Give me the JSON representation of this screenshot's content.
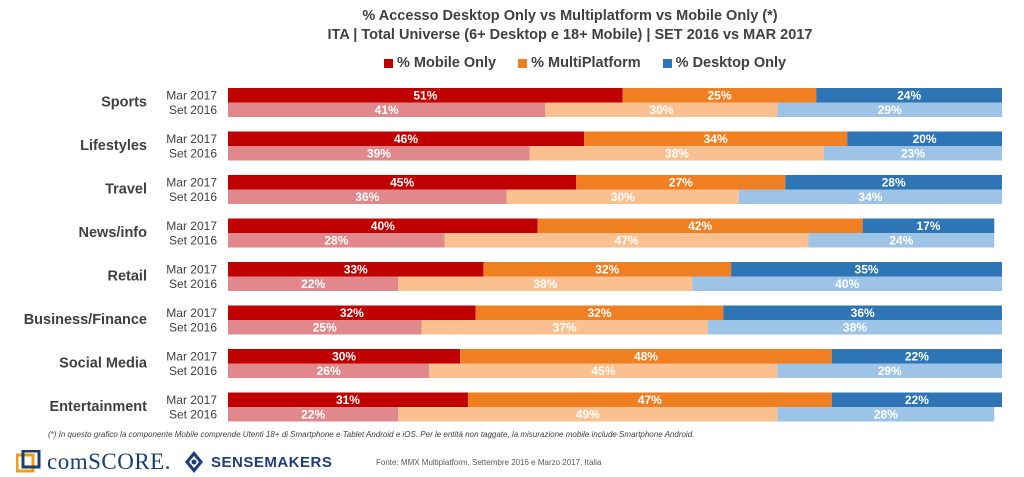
{
  "title_line1": "% Accesso Desktop Only vs Multiplatform vs Mobile Only (*)",
  "title_line2": "ITA |  Total Universe (6+ Desktop e 18+ Mobile) | SET 2016 vs MAR 2017",
  "footnote": "(*) In questo grafico la componente Mobile comprende Utenti 18+ di Smartphone e Tablet Android e iOS. Per le entità non taggate, la misurazione mobile include Smartphone Android.",
  "source": "Fonte: MMX Multiplatform, Settembre 2016 e Marzo 2017, Italia",
  "logos": {
    "comscore": "comSCORE.",
    "sensemakers": "SENSEMAKERS"
  },
  "colors": {
    "mobile_mar": "#c00000",
    "multi_mar": "#f07f22",
    "desktop_mar": "#2e75b6",
    "mobile_set": "#e0888b",
    "multi_set": "#fac090",
    "desktop_set": "#9dc3e6"
  },
  "chart_data": {
    "type": "bar",
    "orientation": "horizontal",
    "stacked": true,
    "unit": "%",
    "xlim": [
      0,
      100
    ],
    "legend_position": "top",
    "periods": [
      "Mar 2017",
      "Set 2016"
    ],
    "categories": [
      "Sports",
      "Lifestyles",
      "Travel",
      "News/info",
      "Retail",
      "Business/Finance",
      "Social Media",
      "Entertainment"
    ],
    "series": [
      {
        "name": "% Mobile Only",
        "values": {
          "Mar 2017": [
            51,
            46,
            45,
            40,
            33,
            32,
            30,
            31
          ],
          "Set 2016": [
            41,
            39,
            36,
            28,
            22,
            25,
            26,
            22
          ]
        }
      },
      {
        "name": "% MultiPlatform",
        "values": {
          "Mar 2017": [
            25,
            34,
            27,
            42,
            32,
            32,
            48,
            47
          ],
          "Set 2016": [
            30,
            38,
            30,
            47,
            38,
            37,
            45,
            49
          ]
        }
      },
      {
        "name": "% Desktop Only",
        "values": {
          "Mar 2017": [
            24,
            20,
            28,
            17,
            35,
            36,
            22,
            22
          ],
          "Set 2016": [
            29,
            23,
            34,
            24,
            40,
            38,
            29,
            28
          ]
        }
      }
    ]
  }
}
